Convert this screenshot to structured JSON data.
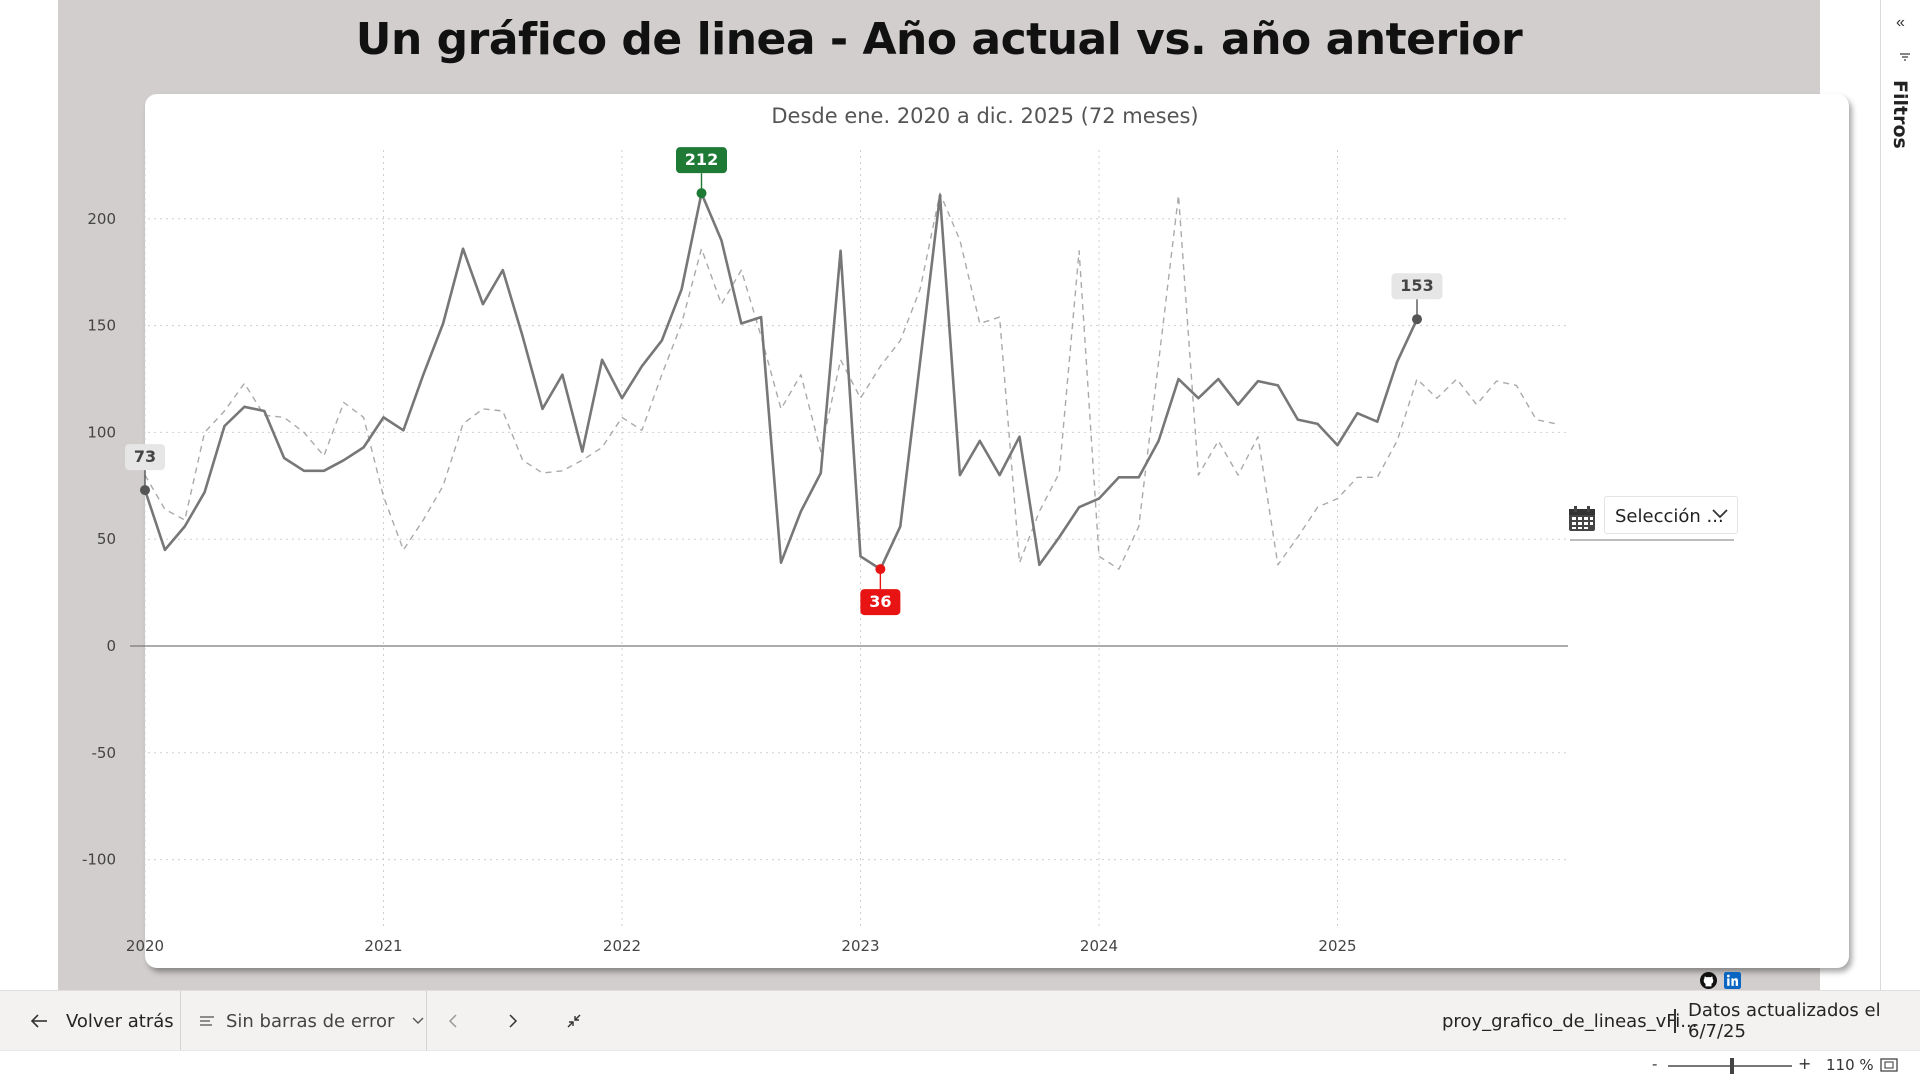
{
  "report": {
    "title": "Un gráfico de linea - Año actual vs. año anterior",
    "subtitle": "Desde ene. 2020 a dic. 2025 (72 meses)"
  },
  "chart_data": {
    "type": "line",
    "subtitle": "Desde ene. 2020 a dic. 2025 (72 meses)",
    "x_tick_labels": [
      "2020",
      "2021",
      "2022",
      "2023",
      "2024",
      "2025"
    ],
    "y_tick_labels": [
      "200",
      "150",
      "100",
      "50",
      "0",
      "-50",
      "-100"
    ],
    "y_ticks": [
      200,
      150,
      100,
      50,
      0,
      -50,
      -100
    ],
    "ylim": [
      -125,
      232
    ],
    "xlim_months": [
      0,
      72
    ],
    "grid": true,
    "x_start": "2020-01",
    "series": [
      {
        "style": "solid",
        "color": "#777777",
        "values": [
          73,
          45,
          56,
          72,
          103,
          112,
          110,
          88,
          82,
          82,
          87,
          93,
          107,
          101,
          127,
          151,
          186,
          160,
          176,
          145,
          111,
          127,
          91,
          134,
          116,
          131,
          143,
          167,
          212,
          190,
          151,
          154,
          39,
          63,
          81,
          185,
          42,
          36,
          56,
          133,
          211,
          80,
          96,
          80,
          98,
          38,
          51,
          65,
          69,
          79,
          79,
          96,
          125,
          116,
          125,
          113,
          124,
          122,
          106,
          104,
          94,
          109,
          105,
          133,
          153
        ]
      },
      {
        "style": "dashed",
        "color": "#aaaaaa",
        "values": [
          80,
          64,
          59,
          100,
          110,
          123,
          108,
          107,
          100,
          89,
          114,
          107,
          70,
          45,
          59,
          75,
          104,
          111,
          110,
          87,
          81,
          82,
          87,
          93,
          107,
          101,
          127,
          151,
          186,
          160,
          176,
          145,
          111,
          127,
          91,
          134,
          116,
          131,
          143,
          167,
          212,
          190,
          151,
          154,
          39,
          63,
          81,
          185,
          42,
          36,
          56,
          133,
          211,
          80,
          96,
          80,
          98,
          38,
          51,
          65,
          69,
          79,
          79,
          96,
          125,
          116,
          125,
          113,
          124,
          122,
          106,
          104
        ]
      }
    ],
    "annotations": [
      {
        "label": "73",
        "month_index": 0,
        "value": 73,
        "kind": "start",
        "color": "#555555",
        "bg": "#e6e6e6",
        "text_color": "#444444"
      },
      {
        "label": "212",
        "month_index": 28,
        "value": 212,
        "kind": "max",
        "color": "#1e7a35",
        "bg": "#1e7a35",
        "text_color": "#ffffff"
      },
      {
        "label": "36",
        "month_index": 37,
        "value": 36,
        "kind": "min",
        "color": "#e81414",
        "bg": "#e81414",
        "text_color": "#ffffff"
      },
      {
        "label": "153",
        "month_index": 64,
        "value": 153,
        "kind": "last",
        "color": "#555555",
        "bg": "#e6e6e6",
        "text_color": "#444444"
      }
    ]
  },
  "date_slicer": {
    "icon": "calendar-icon",
    "value": "Selección ..."
  },
  "social": {
    "icons": [
      "github-icon",
      "linkedin-icon"
    ],
    "linkedin_color": "#0a66c2"
  },
  "filters_pane": {
    "label": "Filtros",
    "collapse_glyph": "«"
  },
  "bottom_bar": {
    "back_label": "Volver atrás",
    "error_bars_label": "Sin barras de error",
    "file_name": "proy_grafico_de_lineas_vFi...",
    "data_updated": "Datos actualizados el 6/7/25"
  },
  "status_bar": {
    "zoom_out": "-",
    "zoom_in": "+",
    "zoom_level": "110 %"
  }
}
